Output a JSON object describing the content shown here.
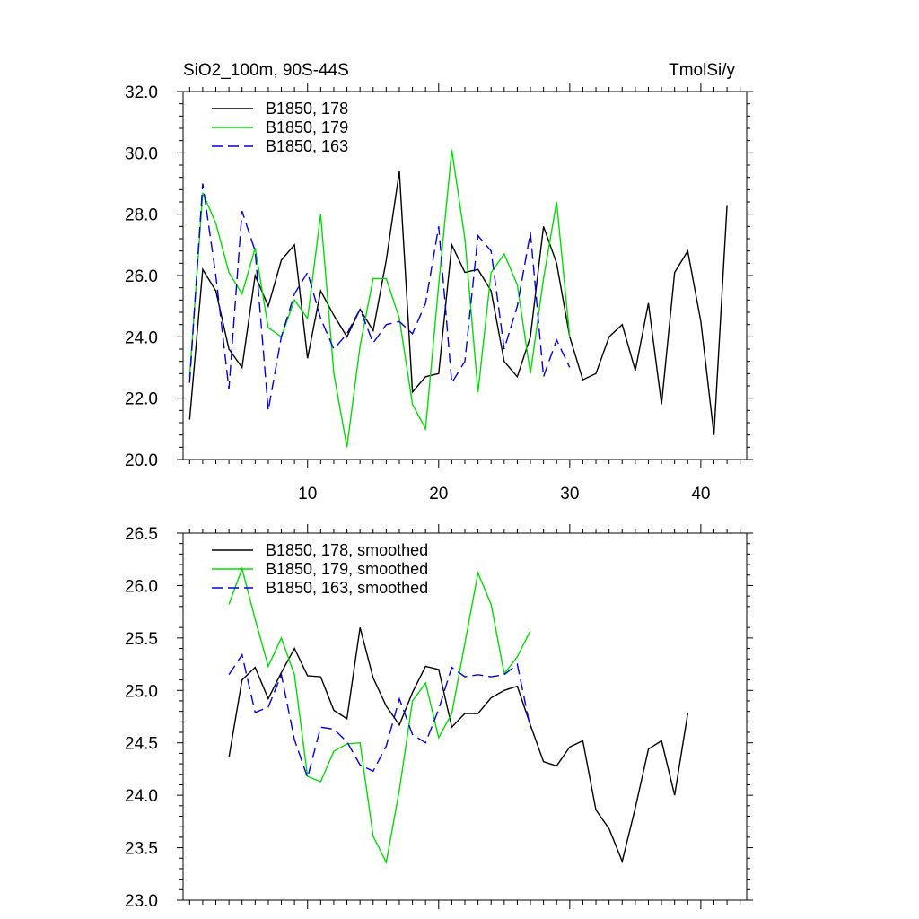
{
  "header": {
    "left_title": "SiO2_100m, 90S-44S",
    "right_title": "TmolSi/y"
  },
  "chart_data": [
    {
      "type": "line",
      "xlim": [
        0.5,
        43.5
      ],
      "ylim": [
        20,
        32
      ],
      "xticks": [
        10,
        20,
        30,
        40
      ],
      "yticks": [
        20,
        22,
        24,
        26,
        28,
        30,
        32
      ],
      "ytick_labels": [
        "20.0",
        "22.0",
        "24.0",
        "26.0",
        "28.0",
        "30.0",
        "32.0"
      ],
      "legend_position": "top-left",
      "series": [
        {
          "name": "B1850, 178",
          "color": "#000000",
          "dash": "solid",
          "x": [
            1,
            2,
            3,
            4,
            5,
            6,
            7,
            8,
            9,
            10,
            11,
            12,
            13,
            14,
            15,
            16,
            17,
            18,
            19,
            20,
            21,
            22,
            23,
            24,
            25,
            26,
            27,
            28,
            29,
            30,
            31,
            32,
            33,
            34,
            35,
            36,
            37,
            38,
            39,
            40,
            41,
            42
          ],
          "values": [
            21.3,
            26.2,
            25.5,
            23.6,
            23.0,
            26.0,
            25.0,
            26.5,
            27.0,
            23.3,
            25.5,
            24.7,
            24.0,
            24.9,
            24.2,
            26.5,
            29.4,
            22.2,
            22.7,
            22.8,
            27.0,
            26.1,
            26.2,
            25.5,
            23.2,
            22.7,
            24.0,
            27.6,
            26.4,
            24.0,
            22.6,
            22.8,
            24.0,
            24.4,
            22.9,
            25.1,
            21.8,
            26.1,
            26.8,
            24.5,
            20.8,
            28.3
          ]
        },
        {
          "name": "B1850, 179",
          "color": "#00dd00",
          "dash": "solid",
          "x": [
            1,
            2,
            3,
            4,
            5,
            6,
            7,
            8,
            9,
            10,
            11,
            12,
            13,
            14,
            15,
            16,
            17,
            18,
            19,
            20,
            21,
            22,
            23,
            24,
            25,
            26,
            27,
            28,
            29,
            30
          ],
          "values": [
            22.7,
            28.7,
            27.7,
            26.1,
            25.4,
            26.9,
            24.3,
            24.0,
            25.2,
            24.6,
            28.0,
            22.8,
            20.4,
            23.7,
            25.9,
            25.9,
            24.6,
            21.8,
            21.0,
            25.7,
            30.1,
            27.2,
            22.2,
            26.1,
            26.7,
            25.7,
            22.8,
            25.9,
            28.4,
            24.0
          ]
        },
        {
          "name": "B1850, 163",
          "color": "#0000dd",
          "dash": "dashed",
          "x": [
            1,
            2,
            3,
            4,
            5,
            6,
            7,
            8,
            9,
            10,
            11,
            12,
            13,
            14,
            15,
            16,
            17,
            18,
            19,
            20,
            21,
            22,
            23,
            24,
            25,
            26,
            27,
            28,
            29,
            30
          ],
          "values": [
            22.5,
            29.0,
            26.0,
            22.3,
            28.1,
            26.8,
            21.6,
            24.0,
            25.4,
            26.1,
            24.6,
            23.6,
            24.1,
            24.9,
            23.8,
            24.4,
            24.5,
            24.1,
            25.1,
            27.6,
            22.5,
            23.2,
            27.3,
            26.8,
            23.6,
            25.0,
            27.4,
            22.7,
            23.9,
            23.0
          ]
        }
      ]
    },
    {
      "type": "line",
      "xlim": [
        0.5,
        43.5
      ],
      "ylim": [
        23,
        26.5
      ],
      "xticks": [
        10,
        20,
        30,
        40
      ],
      "yticks": [
        23,
        23.5,
        24,
        24.5,
        25,
        25.5,
        26,
        26.5
      ],
      "ytick_labels": [
        "23.0",
        "23.5",
        "24.0",
        "24.5",
        "25.0",
        "25.5",
        "26.0",
        "26.5"
      ],
      "legend_position": "top-left",
      "series": [
        {
          "name": "B1850, 178, smoothed",
          "color": "#000000",
          "dash": "solid",
          "x": [
            4,
            5,
            6,
            7,
            8,
            9,
            10,
            11,
            12,
            13,
            14,
            15,
            16,
            17,
            18,
            19,
            20,
            21,
            22,
            23,
            24,
            25,
            26,
            27,
            28,
            29,
            30,
            31,
            32,
            33,
            34,
            35,
            36,
            37,
            38,
            39
          ],
          "values": [
            24.36,
            25.1,
            25.22,
            24.92,
            25.17,
            25.4,
            25.14,
            25.13,
            24.81,
            24.73,
            25.6,
            25.12,
            24.85,
            24.67,
            24.98,
            25.23,
            25.2,
            24.65,
            24.78,
            24.78,
            24.93,
            25.0,
            25.04,
            24.67,
            24.32,
            24.28,
            24.46,
            24.52,
            23.86,
            23.68,
            23.37,
            23.88,
            24.44,
            24.52,
            24.0,
            24.78
          ]
        },
        {
          "name": "B1850, 179, smoothed",
          "color": "#00dd00",
          "dash": "solid",
          "x": [
            4,
            5,
            6,
            7,
            8,
            9,
            10,
            11,
            12,
            13,
            14,
            15,
            16,
            17,
            18,
            19,
            20,
            21,
            22,
            23,
            24,
            25,
            26,
            27
          ],
          "values": [
            25.82,
            26.16,
            25.68,
            25.23,
            25.5,
            25.15,
            24.18,
            24.13,
            24.42,
            24.49,
            24.5,
            23.61,
            23.36,
            24.05,
            24.9,
            25.07,
            24.55,
            24.78,
            25.45,
            26.12,
            25.82,
            25.16,
            25.32,
            25.57
          ]
        },
        {
          "name": "B1850, 163, smoothed",
          "color": "#0000dd",
          "dash": "dashed",
          "x": [
            4,
            5,
            6,
            7,
            8,
            9,
            10,
            11,
            12,
            13,
            14,
            15,
            16,
            17,
            18,
            19,
            20,
            21,
            22,
            23,
            24,
            25,
            26,
            27
          ],
          "values": [
            25.15,
            25.34,
            24.79,
            24.84,
            25.15,
            24.53,
            24.17,
            24.65,
            24.63,
            24.51,
            24.29,
            24.23,
            24.47,
            24.92,
            24.58,
            24.5,
            24.82,
            25.22,
            25.13,
            25.15,
            25.13,
            25.15,
            25.25,
            24.64
          ]
        }
      ]
    }
  ]
}
